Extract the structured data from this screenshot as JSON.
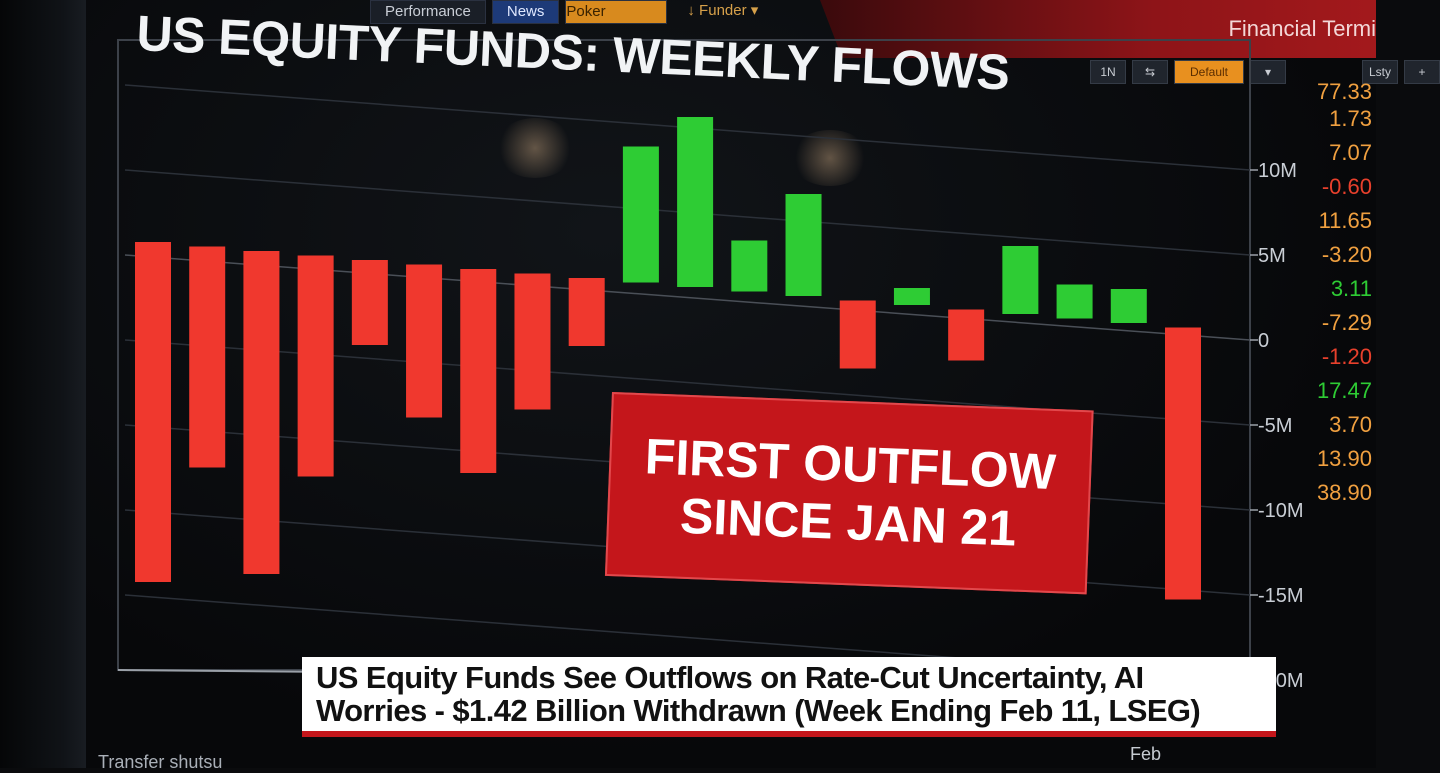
{
  "tabs": [
    {
      "label": "Performance",
      "style": "plain"
    },
    {
      "label": "News",
      "style": "news"
    },
    {
      "label": "Poker",
      "style": "poker"
    },
    {
      "label": "↓ Funder ▾",
      "style": "funder"
    }
  ],
  "app": {
    "title": "Financial Termi"
  },
  "toolbar": {
    "items": [
      "1N",
      "⇆",
      "Default",
      "▾",
      "Lsty",
      "+"
    ]
  },
  "chart_data": {
    "type": "bar",
    "title": "US EQUITY FUNDS: WEEKLY FLOWS",
    "ylabel": "",
    "xlabel": "Feb",
    "ylim": [
      -20,
      13
    ],
    "y_ticks": [
      10,
      5,
      0,
      -5,
      -10,
      -15,
      -20
    ],
    "y_tick_labels": [
      "10M",
      "5M",
      "0",
      "-5M",
      "-10M",
      "-15M",
      "-20M"
    ],
    "units": "$M",
    "values": [
      -20,
      -13,
      -19,
      -13,
      -5,
      -9,
      -12,
      -8,
      -4,
      8,
      10,
      3,
      6,
      -4,
      1,
      -3,
      4,
      2,
      2,
      -16
    ],
    "positive_color": "#2ecc34",
    "negative_color": "#f0382e",
    "annotation": [
      "FIRST OUTFLOW",
      "SINCE JAN 21"
    ]
  },
  "ticker_values": [
    {
      "text": "77.33",
      "color": "#f0a040"
    },
    {
      "text": "1.73",
      "color": "#f0a040"
    },
    {
      "text": "7.07",
      "color": "#f0a040"
    },
    {
      "text": "-0.60",
      "color": "#e8402c"
    },
    {
      "text": "11.65",
      "color": "#f0a040"
    },
    {
      "text": "-3.20",
      "color": "#f0a040"
    },
    {
      "text": "3.11",
      "color": "#2ecc34"
    },
    {
      "text": "-7.29",
      "color": "#f0a040"
    },
    {
      "text": "-1.20",
      "color": "#e8402c"
    },
    {
      "text": "17.47",
      "color": "#2ecc34"
    },
    {
      "text": "3.70",
      "color": "#f0a040"
    },
    {
      "text": "13.90",
      "color": "#f0a040"
    },
    {
      "text": "38.90",
      "color": "#f0a040"
    }
  ],
  "headline": {
    "line1": "US Equity Funds See Outflows on Rate-Cut Uncertainty, AI",
    "line2": "Worries - $1.42 Billion Withdrawn (Week Ending Feb 11, LSEG)"
  },
  "footer": {
    "label": "Transfer shutsu"
  }
}
